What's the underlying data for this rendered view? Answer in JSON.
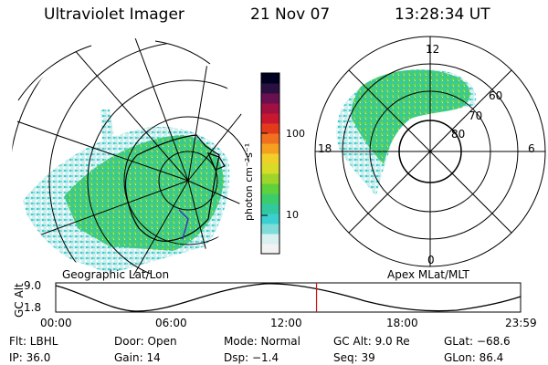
{
  "header": {
    "instrument": "Ultraviolet Imager",
    "date": "21 Nov 07",
    "time": "13:28:34 UT"
  },
  "left_map": {
    "label": "Geographic Lat/Lon"
  },
  "right_map": {
    "label": "Apex MLat/MLT",
    "mlt_labels": [
      "12",
      "18",
      "6",
      "0"
    ],
    "mlat_labels": [
      "60",
      "70",
      "80"
    ]
  },
  "colorbar": {
    "unit_label": "photon cm⁻²s⁻¹",
    "tick_labels": [
      "100",
      "10"
    ],
    "colors": [
      "#f2f2f2",
      "#d8f0f0",
      "#7fdcd8",
      "#3ccfd0",
      "#33c9a0",
      "#3ccd6a",
      "#5fd13a",
      "#9fd52a",
      "#d8dc28",
      "#f0d028",
      "#f5a021",
      "#f07020",
      "#e43a1c",
      "#c81830",
      "#a01040",
      "#6a1050",
      "#2a1040",
      "#000020"
    ]
  },
  "altitude_plot": {
    "axis_label": "GC Alt",
    "y_ticks": [
      "9.0",
      "1.8"
    ],
    "x_ticks": [
      "00:00",
      "06:00",
      "12:00",
      "18:00",
      "23:59"
    ],
    "current_time_fraction": 0.561
  },
  "status": {
    "flt": "Flt: LBHL",
    "door": "Door: Open",
    "mode": "Mode: Normal",
    "gc_alt": "GC Alt: 9.0 Re",
    "glat": "GLat: −68.6",
    "ip": "IP: 36.0",
    "gain": "Gain: 14",
    "dsp": "Dsp:   −1.4",
    "seq": "Seq: 39",
    "glon": "GLon:  86.4"
  }
}
